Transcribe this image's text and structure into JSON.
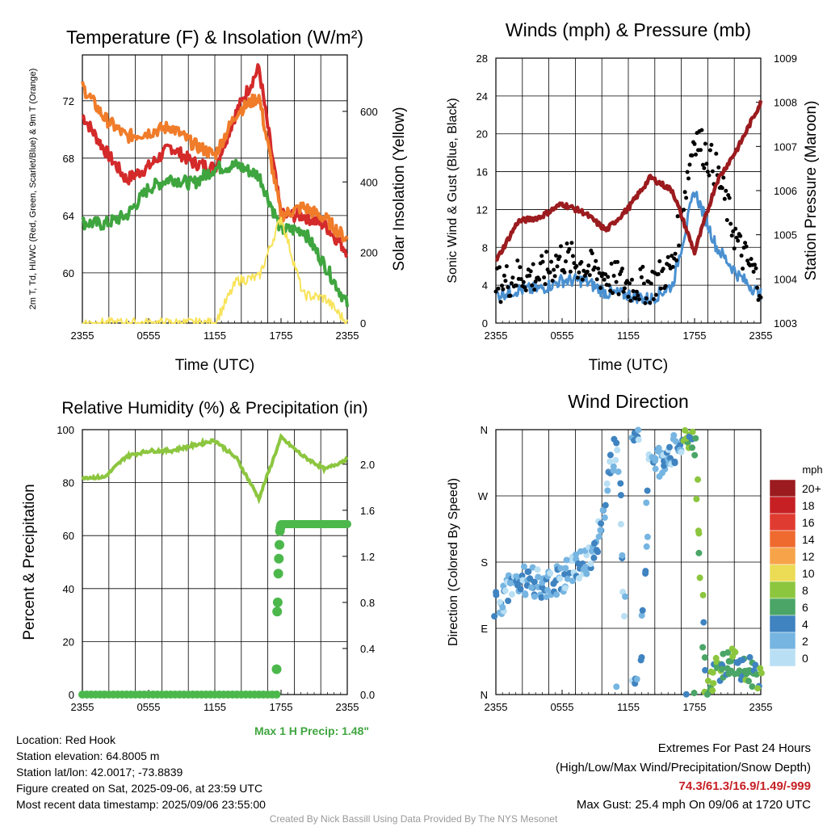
{
  "panels": {
    "temp": {
      "title": "Temperature (F) & Insolation (W/m²)",
      "ylabel": "2m T, Td, HI/WC (Red, Green, Scarlet/Blue) & 9m T (Orange)",
      "y2label": "Solar Insolation (Yellow)",
      "xlabel": "Time (UTC)"
    },
    "wind": {
      "title": "Winds (mph) & Pressure (mb)",
      "ylabel": "Sonic Wind & Gust (Blue, Black)",
      "y2label": "Station Pressure (Maroon)",
      "xlabel": "Time (UTC)"
    },
    "rh": {
      "title": "Relative Humidity (%) & Precipitation (in)",
      "ylabel": "Percent & Precipitation",
      "annotation": "Max 1 H Precip: 1.48\""
    },
    "dir": {
      "title": "Wind Direction",
      "ylabel": "Direction (Colored By Speed)",
      "legend_unit": "mph",
      "legend_labels": [
        "20+",
        "18",
        "16",
        "14",
        "12",
        "10",
        "8",
        "6",
        "4",
        "2",
        "0"
      ],
      "legend_colors": [
        "#9b1b1e",
        "#c62025",
        "#e03b30",
        "#ef6a2e",
        "#f6a34a",
        "#ebdb55",
        "#8cc63f",
        "#4aa566",
        "#3f83c0",
        "#76b5e1",
        "#b9dff4"
      ]
    }
  },
  "footer": {
    "location": "Location: Red Hook",
    "elevation": "Station elevation: 64.8005 m",
    "latlon": "Station lat/lon: 42.0017; -73.8839",
    "created": "Figure created on Sat, 2025-09-06, at 23:59 UTC",
    "recent": "Most recent data timestamp: 2025/09/06 23:55:00",
    "extremes_title": "Extremes For Past 24 Hours",
    "extremes_sub": "(High/Low/Max Wind/Precipitation/Snow Depth)",
    "extremes_values": "74.3/61.3/16.9/1.49/-999",
    "max_gust": "Max Gust: 25.4 mph On 09/06 at 1720 UTC",
    "credit": "Created By Nick Bassill Using Data Provided By The NYS Mesonet"
  },
  "chart_data": [
    {
      "type": "line",
      "title": "Temperature (F) & Insolation (W/m2)",
      "xlabel": "Time (UTC)",
      "categories": [
        "2355",
        "0555",
        "1155",
        "1755",
        "2355"
      ],
      "x": [
        0,
        2,
        4,
        6,
        8,
        10,
        12,
        14,
        16,
        18,
        20,
        22,
        24
      ],
      "ylim": [
        56.5,
        75.2
      ],
      "y2lim": [
        0,
        760
      ],
      "yticks": [
        60,
        64,
        68,
        72
      ],
      "y2ticks": [
        0,
        200,
        400,
        600
      ],
      "series": [
        {
          "name": "2m T",
          "color": "#d42a2a",
          "values": [
            71,
            68.6,
            66.5,
            67.4,
            68.8,
            67.7,
            67.3,
            71.3,
            74.3,
            64,
            64,
            63.3,
            61.5
          ]
        },
        {
          "name": "Td",
          "color": "#3fa53f",
          "values": [
            63.5,
            63.4,
            64,
            65.9,
            66.6,
            66.2,
            67.3,
            67.5,
            66.8,
            63,
            63,
            60.5,
            57.8
          ]
        },
        {
          "name": "9m T",
          "color": "#f07c2a",
          "values": [
            73,
            70.8,
            69.5,
            69.8,
            70.2,
            69,
            68.2,
            71.2,
            72.3,
            64,
            64.6,
            63.8,
            62.3
          ]
        },
        {
          "name": "Solar Insolation",
          "color": "#f8e35a",
          "axis": "y2",
          "values": [
            0,
            0,
            0,
            0,
            0,
            0,
            0,
            120,
            130,
            300,
            80,
            70,
            0
          ]
        }
      ]
    },
    {
      "type": "line",
      "title": "Winds (mph) & Pressure (mb)",
      "xlabel": "Time (UTC)",
      "categories": [
        "2355",
        "0555",
        "1155",
        "1755",
        "2355"
      ],
      "x": [
        0,
        2,
        4,
        6,
        8,
        10,
        12,
        14,
        16,
        18,
        20,
        22,
        24
      ],
      "ylim": [
        0,
        28
      ],
      "y2lim": [
        1003,
        1009
      ],
      "yticks": [
        0,
        4,
        8,
        12,
        16,
        20,
        24,
        28
      ],
      "y2ticks": [
        1003,
        1004,
        1005,
        1006,
        1007,
        1008,
        1009
      ],
      "series": [
        {
          "name": "Sonic Wind",
          "color": "#4a90d0",
          "values": [
            3,
            3.5,
            3.6,
            4.5,
            4.5,
            3.2,
            3,
            2.5,
            4,
            14,
            8,
            5,
            3
          ]
        },
        {
          "name": "Gust",
          "color": "#000000",
          "marker": "dot",
          "values": [
            4,
            5,
            5,
            7,
            6,
            5,
            4,
            4,
            6,
            20,
            16,
            8,
            4
          ]
        },
        {
          "name": "Station Pressure",
          "color": "#9b1b1e",
          "axis": "y2",
          "values": [
            1004.4,
            1005.3,
            1005.4,
            1005.7,
            1005.5,
            1005.1,
            1005.6,
            1006.3,
            1006,
            1004.6,
            1006.2,
            1007,
            1008
          ]
        }
      ]
    },
    {
      "type": "line",
      "title": "Relative Humidity (%) & Precipitation (in)",
      "categories": [
        "2355",
        "0555",
        "1155",
        "1755",
        "2355"
      ],
      "x": [
        0,
        2,
        4,
        6,
        8,
        10,
        12,
        14,
        16,
        18,
        20,
        22,
        24
      ],
      "ylim": [
        0,
        100
      ],
      "y2lim": [
        0,
        2.3
      ],
      "yticks": [
        0,
        20,
        40,
        60,
        80,
        100
      ],
      "y2ticks": [
        0.0,
        0.4,
        0.8,
        1.2,
        1.6,
        2.0
      ],
      "series": [
        {
          "name": "Relative Humidity",
          "color": "#8cc63f",
          "values": [
            82,
            82,
            90,
            92,
            92,
            94,
            96,
            89,
            74,
            97,
            90,
            85,
            89
          ]
        },
        {
          "name": "Precipitation",
          "color": "#4cb84c",
          "axis": "y2",
          "values": [
            0,
            0,
            0,
            0,
            0,
            0,
            0,
            0,
            0,
            1.45,
            1.48,
            1.48,
            1.48
          ]
        }
      ]
    },
    {
      "type": "scatter",
      "title": "Wind Direction",
      "categories": [
        "2355",
        "0555",
        "1155",
        "1755",
        "2355"
      ],
      "ylim": [
        0,
        360
      ],
      "yticks": [
        "N",
        "E",
        "S",
        "W",
        "N"
      ],
      "series": [
        {
          "name": "Direction",
          "x": [
            0,
            1,
            2,
            3,
            4,
            5,
            6,
            7,
            8,
            9,
            10,
            11,
            12,
            13,
            14,
            15,
            16,
            17,
            18,
            19,
            20,
            21,
            22,
            23,
            24
          ],
          "values": [
            120,
            140,
            155,
            155,
            150,
            150,
            160,
            170,
            180,
            190,
            275,
            355,
            10,
            0,
            340,
            310,
            330,
            345,
            350,
            10,
            35,
            45,
            40,
            30,
            25
          ]
        }
      ]
    }
  ]
}
